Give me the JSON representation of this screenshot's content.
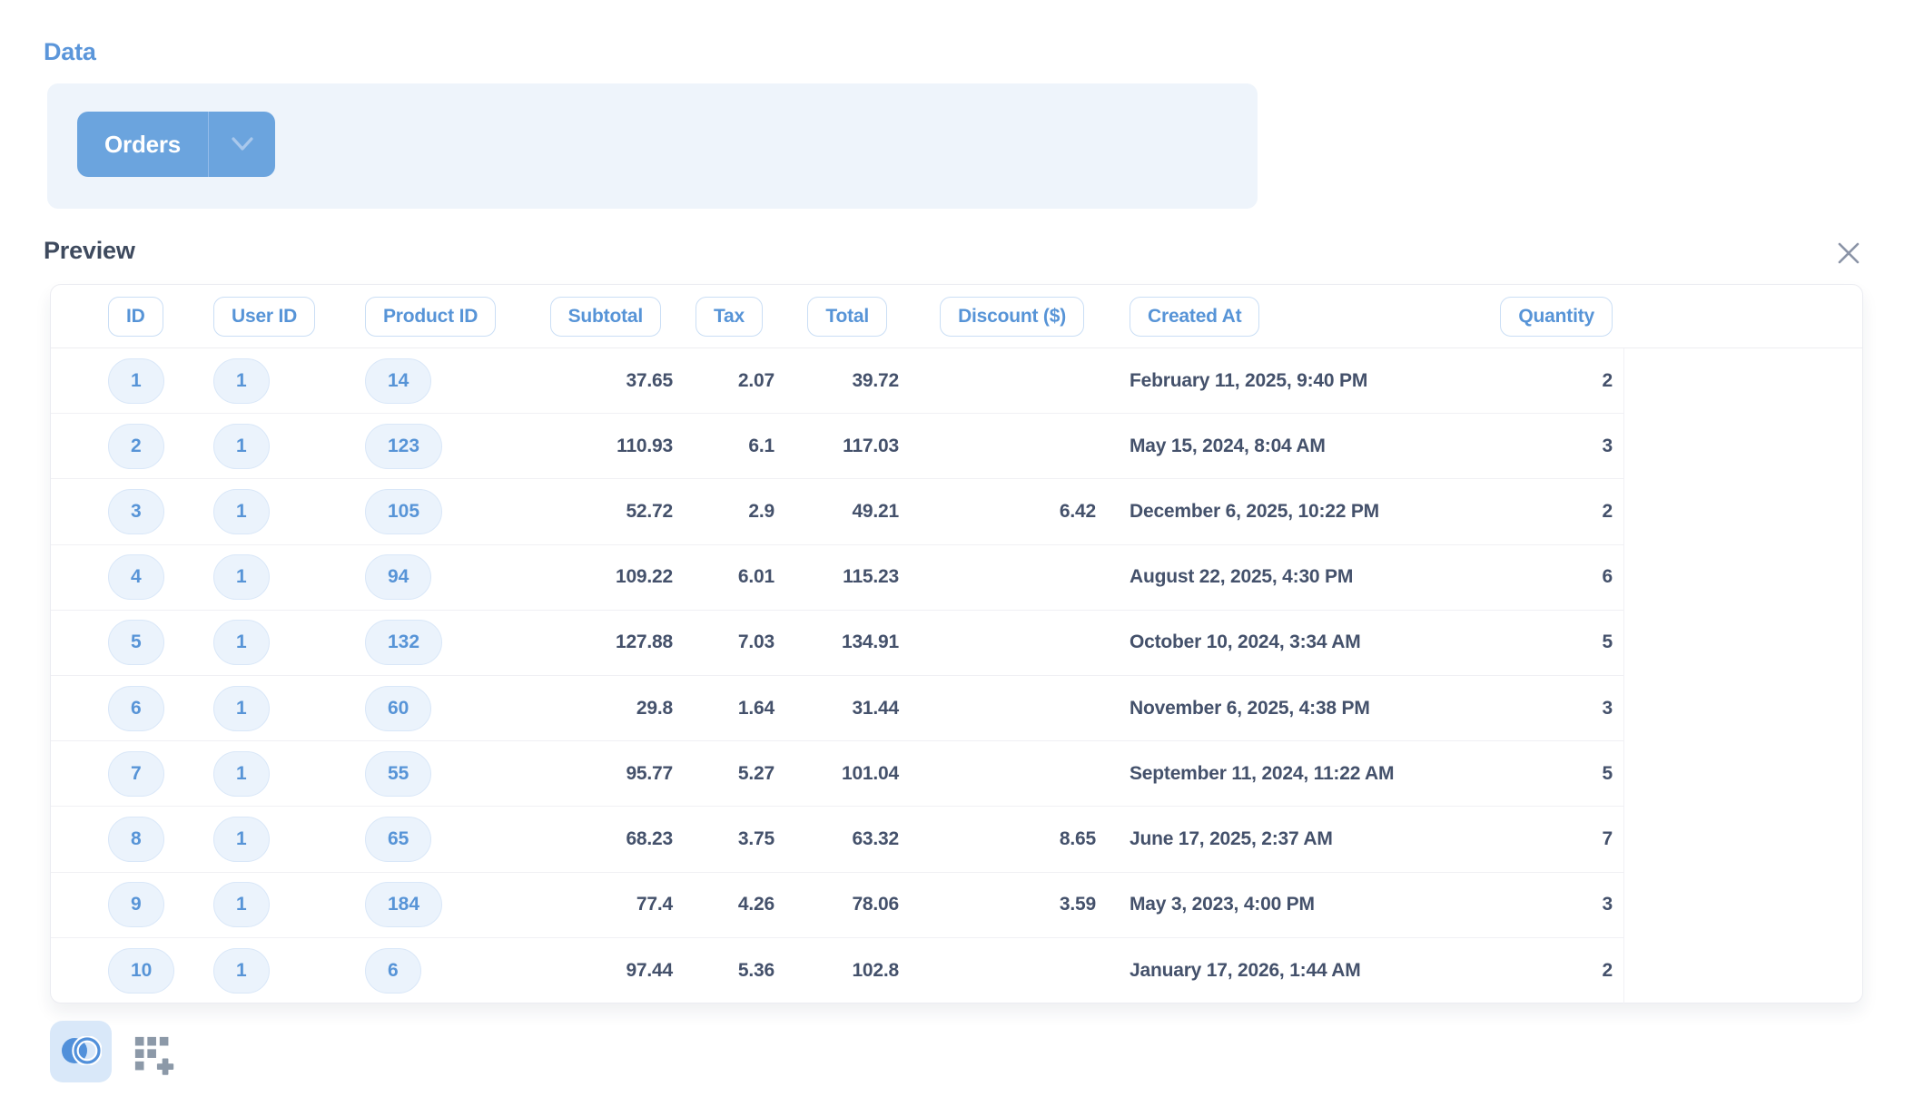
{
  "data_section": {
    "title": "Data",
    "table_button": {
      "label": "Orders",
      "chevron_icon": "chevron-down-icon"
    }
  },
  "preview_section": {
    "title": "Preview",
    "close_icon": "close-icon"
  },
  "table": {
    "columns": [
      {
        "key": "id",
        "label": "ID",
        "type": "pill",
        "align": "left"
      },
      {
        "key": "user_id",
        "label": "User ID",
        "type": "pill",
        "align": "left"
      },
      {
        "key": "product_id",
        "label": "Product ID",
        "type": "pill",
        "align": "left"
      },
      {
        "key": "subtotal",
        "label": "Subtotal",
        "type": "number",
        "align": "right"
      },
      {
        "key": "tax",
        "label": "Tax",
        "type": "number",
        "align": "right"
      },
      {
        "key": "total",
        "label": "Total",
        "type": "number",
        "align": "right"
      },
      {
        "key": "discount",
        "label": "Discount ($)",
        "type": "number",
        "align": "right"
      },
      {
        "key": "created_at",
        "label": "Created At",
        "type": "text",
        "align": "left"
      },
      {
        "key": "quantity",
        "label": "Quantity",
        "type": "number",
        "align": "right"
      }
    ],
    "rows": [
      {
        "id": "1",
        "user_id": "1",
        "product_id": "14",
        "subtotal": "37.65",
        "tax": "2.07",
        "total": "39.72",
        "discount": "",
        "created_at": "February 11, 2025, 9:40 PM",
        "quantity": "2"
      },
      {
        "id": "2",
        "user_id": "1",
        "product_id": "123",
        "subtotal": "110.93",
        "tax": "6.1",
        "total": "117.03",
        "discount": "",
        "created_at": "May 15, 2024, 8:04 AM",
        "quantity": "3"
      },
      {
        "id": "3",
        "user_id": "1",
        "product_id": "105",
        "subtotal": "52.72",
        "tax": "2.9",
        "total": "49.21",
        "discount": "6.42",
        "created_at": "December 6, 2025, 10:22 PM",
        "quantity": "2"
      },
      {
        "id": "4",
        "user_id": "1",
        "product_id": "94",
        "subtotal": "109.22",
        "tax": "6.01",
        "total": "115.23",
        "discount": "",
        "created_at": "August 22, 2025, 4:30 PM",
        "quantity": "6"
      },
      {
        "id": "5",
        "user_id": "1",
        "product_id": "132",
        "subtotal": "127.88",
        "tax": "7.03",
        "total": "134.91",
        "discount": "",
        "created_at": "October 10, 2024, 3:34 AM",
        "quantity": "5"
      },
      {
        "id": "6",
        "user_id": "1",
        "product_id": "60",
        "subtotal": "29.8",
        "tax": "1.64",
        "total": "31.44",
        "discount": "",
        "created_at": "November 6, 2025, 4:38 PM",
        "quantity": "3"
      },
      {
        "id": "7",
        "user_id": "1",
        "product_id": "55",
        "subtotal": "95.77",
        "tax": "5.27",
        "total": "101.04",
        "discount": "",
        "created_at": "September 11, 2024, 11:22 AM",
        "quantity": "5"
      },
      {
        "id": "8",
        "user_id": "1",
        "product_id": "65",
        "subtotal": "68.23",
        "tax": "3.75",
        "total": "63.32",
        "discount": "8.65",
        "created_at": "June 17, 2025, 2:37 AM",
        "quantity": "7"
      },
      {
        "id": "9",
        "user_id": "1",
        "product_id": "184",
        "subtotal": "77.4",
        "tax": "4.26",
        "total": "78.06",
        "discount": "3.59",
        "created_at": "May 3, 2023, 4:00 PM",
        "quantity": "3"
      },
      {
        "id": "10",
        "user_id": "1",
        "product_id": "6",
        "subtotal": "97.44",
        "tax": "5.36",
        "total": "102.8",
        "discount": "",
        "created_at": "January 17, 2026, 1:44 AM",
        "quantity": "2"
      }
    ]
  },
  "footer": {
    "icons": [
      "venn-join-icon",
      "add-columns-grid-icon"
    ]
  },
  "colors": {
    "accent_blue": "#5b96da",
    "button_blue": "#6ba4de",
    "pill_text": "#5794d7",
    "pill_bg": "#ebf3fc",
    "pill_border": "#d9e7f8",
    "header_pill_border": "#cadef5",
    "heading_dark": "#3e4a5e",
    "cell_text": "#44516b",
    "panel_bg": "#eef4fb",
    "icon_gray": "#8c99a8",
    "divider": "#f0f0f4"
  }
}
